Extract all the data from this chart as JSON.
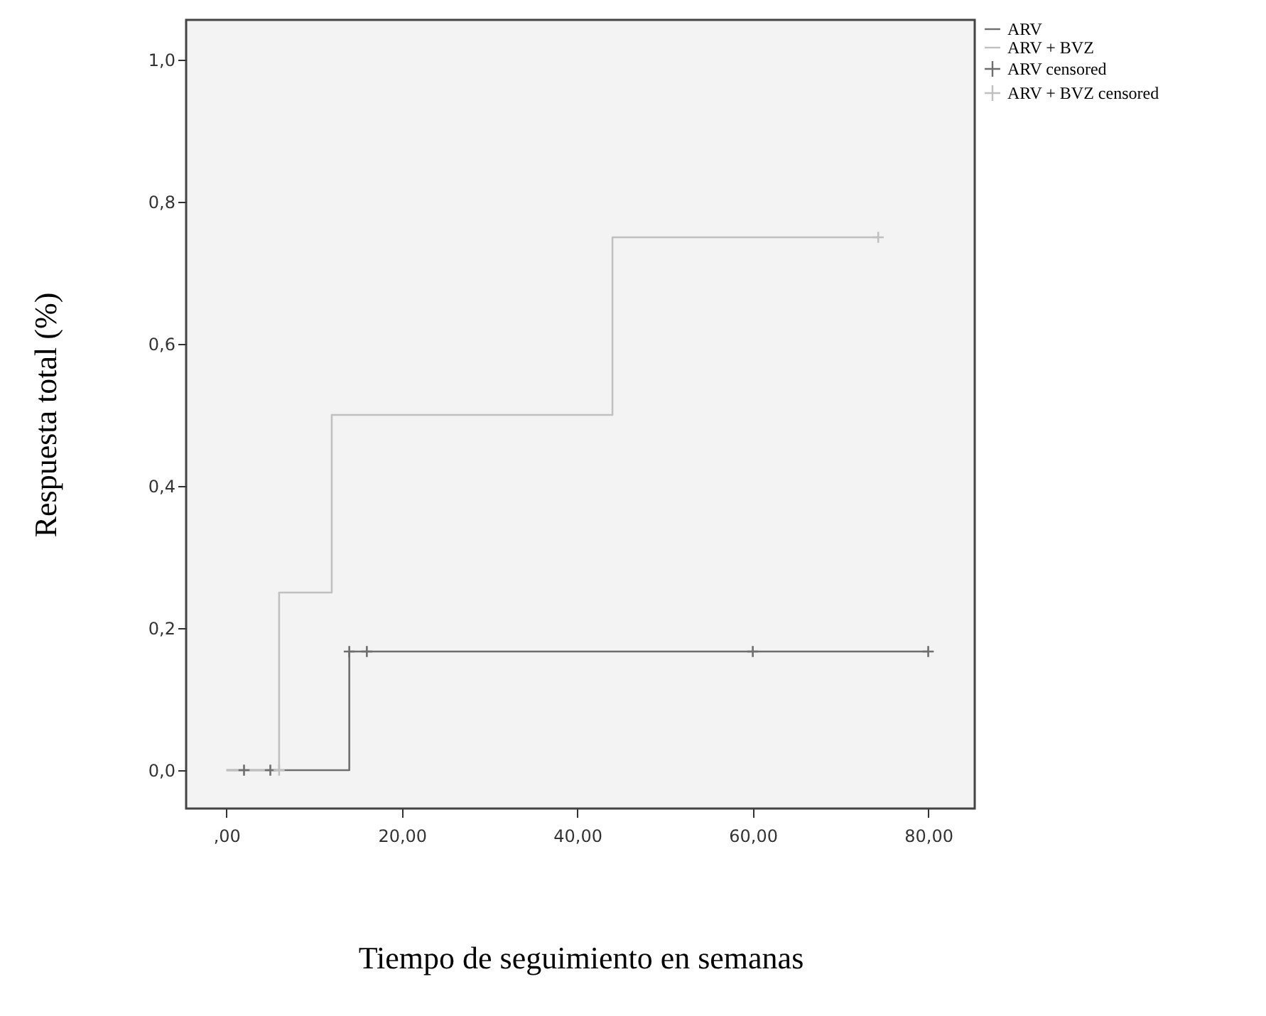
{
  "chart_data": {
    "type": "step",
    "xlabel": "Tiempo de seguimiento en semanas",
    "ylabel": "Respuesta total (%)",
    "xlim": [
      -4.6,
      85.3
    ],
    "ylim": [
      -0.054,
      1.056
    ],
    "xticks": [
      {
        "value": 0,
        "label": ",00"
      },
      {
        "value": 20,
        "label": "20,00"
      },
      {
        "value": 40,
        "label": "40,00"
      },
      {
        "value": 60,
        "label": "60,00"
      },
      {
        "value": 80,
        "label": "80,00"
      }
    ],
    "yticks": [
      {
        "value": 0,
        "label": "0,0"
      },
      {
        "value": 0.2,
        "label": "0,2"
      },
      {
        "value": 0.4,
        "label": "0,4"
      },
      {
        "value": 0.6,
        "label": "0,6"
      },
      {
        "value": 0.8,
        "label": "0,8"
      },
      {
        "value": 1.0,
        "label": "1,0"
      }
    ],
    "grid": false,
    "legend": "top right",
    "line_style": "solid",
    "series": [
      {
        "name": "ARV",
        "color": "#6e6e6e",
        "x": [
          0,
          14,
          80
        ],
        "values": [
          0,
          0.167,
          0.167
        ]
      },
      {
        "name": "ARV + BVZ",
        "color": "#c0c0c0",
        "x": [
          0,
          6,
          12,
          44,
          74.3
        ],
        "values": [
          0,
          0.25,
          0.5,
          0.75,
          0.75
        ]
      },
      {
        "name": "ARV censored",
        "type": "scatter",
        "marker": "cross",
        "color": "#6e6e6e",
        "x": [
          2,
          5,
          14,
          16,
          60,
          80
        ],
        "values": [
          0,
          0,
          0.167,
          0.167,
          0.167,
          0.167
        ]
      },
      {
        "name": "ARV + BVZ censored",
        "type": "scatter",
        "marker": "cross",
        "color": "#c0c0c0",
        "x": [
          6,
          74.3
        ],
        "values": [
          0,
          0.75
        ]
      }
    ]
  }
}
